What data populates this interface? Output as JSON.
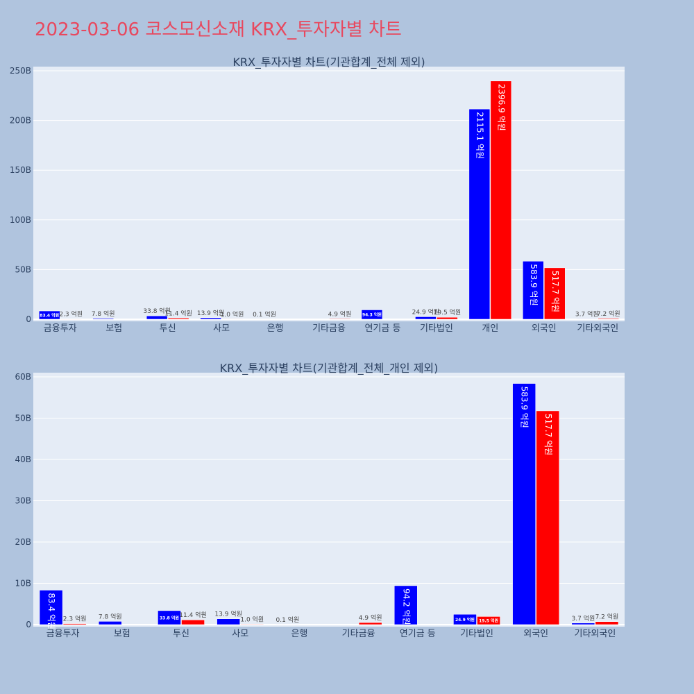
{
  "page": {
    "title": "2023-03-06 코스모신소재 KRX_투자자별 차트",
    "background": "#b0c4de",
    "title_color": "#e8485e",
    "plot_bg": "#e5ecf6",
    "buy_color": "#0000ff",
    "sell_color": "#ff0000"
  },
  "chart_data": [
    {
      "type": "bar",
      "title": "KRX_투자자별 차트(기관합계_전체 제외)",
      "categories": [
        "금융투자",
        "보험",
        "투신",
        "사모",
        "은행",
        "기타금융",
        "연기금 등",
        "기타법인",
        "개인",
        "외국인",
        "기타외국인"
      ],
      "y_ticks": [
        "0",
        "50B",
        "100B",
        "150B",
        "200B",
        "250B"
      ],
      "ylim": [
        0,
        250
      ],
      "grid": true,
      "series": [
        {
          "values": [
            8.34,
            0.78,
            3.38,
            1.39,
            0.01,
            0,
            9.43,
            2.49,
            211.51,
            58.39,
            0.37
          ],
          "labels": [
            "83.4 억원",
            "7.8 억원",
            "33.8 억원",
            "13.9 억원",
            "0.1 억원",
            "",
            "94.3 억원",
            "24.9 억원",
            "2115.1 억원",
            "583.9 억원",
            "3.7 억원"
          ]
        },
        {
          "values": [
            0.23,
            0,
            1.14,
            0.1,
            0,
            0.49,
            0,
            1.95,
            239.69,
            51.77,
            0.72
          ],
          "labels": [
            "2.3 억원",
            "",
            "11.4 억원",
            "1.0 억원",
            "",
            "4.9 억원",
            "",
            "19.5 억원",
            "2396.9 억원",
            "517.7 억원",
            "7.2 억원"
          ]
        }
      ]
    },
    {
      "type": "bar",
      "title": "KRX_투자자별 차트(기관합계_전체_개인 제외)",
      "categories": [
        "금융투자",
        "보험",
        "투신",
        "사모",
        "은행",
        "기타금융",
        "연기금 등",
        "기타법인",
        "외국인",
        "기타외국인"
      ],
      "y_ticks": [
        "0",
        "10B",
        "20B",
        "30B",
        "40B",
        "50B",
        "60B"
      ],
      "ylim": [
        0,
        60
      ],
      "grid": true,
      "series": [
        {
          "values": [
            8.34,
            0.78,
            3.38,
            1.39,
            0.01,
            0,
            9.42,
            2.49,
            58.39,
            0.37
          ],
          "labels": [
            "83.4 억원",
            "7.8 억원",
            "33.8 억원",
            "13.9 억원",
            "0.1 억원",
            "",
            "94.2 억원",
            "24.9 억원",
            "583.9 억원",
            "3.7 억원"
          ]
        },
        {
          "values": [
            0.23,
            0,
            1.14,
            0.1,
            0,
            0.49,
            0,
            1.95,
            51.77,
            0.72
          ],
          "labels": [
            "2.3 억원",
            "",
            "11.4 억원",
            "1.0 억원",
            "",
            "4.9 억원",
            "",
            "19.5 억원",
            "517.7 억원",
            "7.2 억원"
          ]
        }
      ]
    }
  ]
}
